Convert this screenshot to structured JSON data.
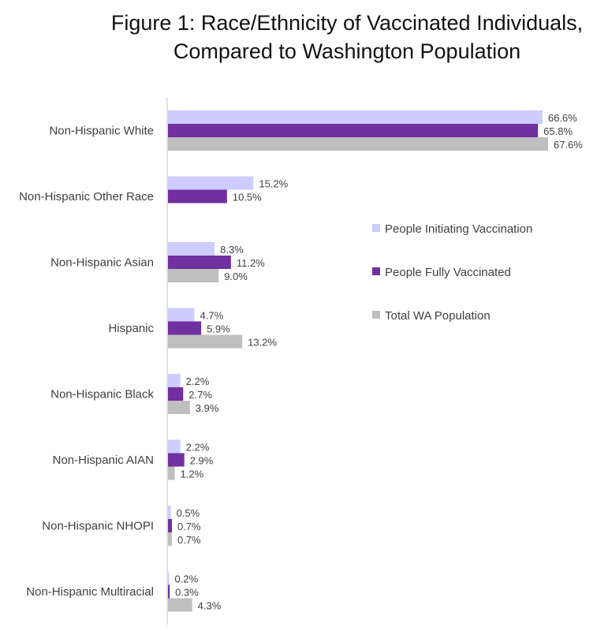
{
  "chart_data": {
    "type": "bar",
    "orientation": "horizontal",
    "title": "Figure 1: Race/Ethnicity of Vaccinated Individuals,",
    "subtitle": "Compared to Washington Population",
    "xlabel": "",
    "ylabel": "",
    "xlim": [
      0,
      70
    ],
    "grid": false,
    "legend_position": "right",
    "categories": [
      "Non-Hispanic White",
      "Non-Hispanic Other Race",
      "Non-Hispanic Asian",
      "Hispanic",
      "Non-Hispanic Black",
      "Non-Hispanic AIAN",
      "Non-Hispanic NHOPI",
      "Non-Hispanic Multiracial"
    ],
    "series": [
      {
        "name": "People Initiating Vaccination",
        "color": "#ccccff",
        "values": [
          66.6,
          15.2,
          8.3,
          4.7,
          2.2,
          2.2,
          0.5,
          0.2
        ]
      },
      {
        "name": "People Fully Vaccinated",
        "color": "#7030a0",
        "values": [
          65.8,
          10.5,
          11.2,
          5.9,
          2.7,
          2.9,
          0.7,
          0.3
        ]
      },
      {
        "name": "Total WA Population",
        "color": "#bfbfbf",
        "values": [
          67.6,
          null,
          9.0,
          13.2,
          3.9,
          1.2,
          0.7,
          4.3
        ]
      }
    ],
    "label_suffix": "%"
  }
}
